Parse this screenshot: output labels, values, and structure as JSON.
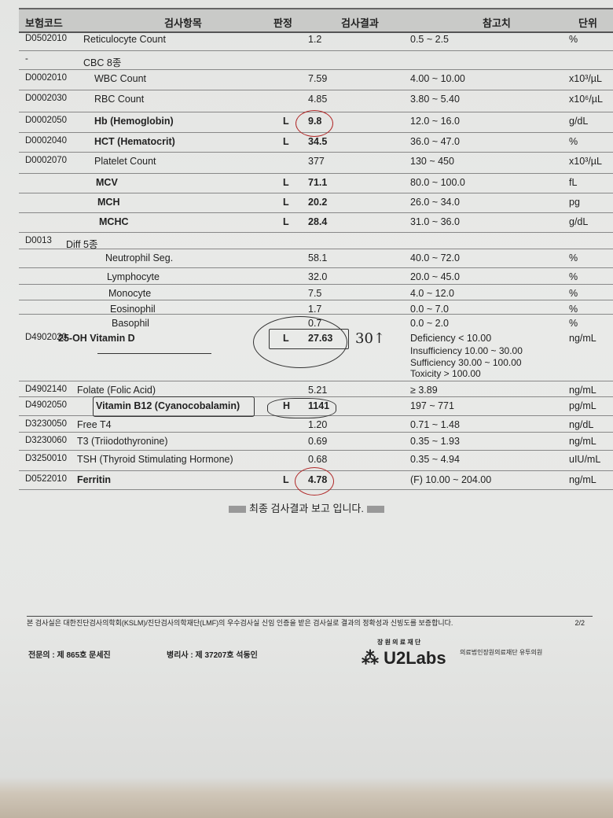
{
  "header": {
    "code": "보험코드",
    "item": "검사항목",
    "flag": "판정",
    "result": "검사결과",
    "reference": "참고치",
    "unit": "단위"
  },
  "rows": [
    {
      "code": "D0502010",
      "name": "Reticulocyte Count",
      "flag": "",
      "result": "1.2",
      "ref": "0.5 ~ 2.5",
      "unit": "%"
    },
    {
      "code": "-",
      "name": "CBC 8종",
      "flag": "",
      "result": "",
      "ref": "",
      "unit": ""
    },
    {
      "code": "D0002010",
      "name": "WBC Count",
      "flag": "",
      "result": "7.59",
      "ref": "4.00 ~ 10.00",
      "unit": "x10³/µL"
    },
    {
      "code": "D0002030",
      "name": "RBC Count",
      "flag": "",
      "result": "4.85",
      "ref": "3.80 ~ 5.40",
      "unit": "x10⁶/µL"
    },
    {
      "code": "D0002050",
      "name": "Hb (Hemoglobin)",
      "flag": "L",
      "result": "9.8",
      "ref": "12.0 ~ 16.0",
      "unit": "g/dL",
      "bold": true
    },
    {
      "code": "D0002040",
      "name": "HCT (Hematocrit)",
      "flag": "L",
      "result": "34.5",
      "ref": "36.0 ~ 47.0",
      "unit": "%",
      "bold": true
    },
    {
      "code": "D0002070",
      "name": "Platelet Count",
      "flag": "",
      "result": "377",
      "ref": "130 ~ 450",
      "unit": "x10³/µL"
    },
    {
      "code": "",
      "name": "MCV",
      "flag": "L",
      "result": "71.1",
      "ref": "80.0 ~ 100.0",
      "unit": "fL",
      "bold": true
    },
    {
      "code": "",
      "name": "MCH",
      "flag": "L",
      "result": "20.2",
      "ref": "26.0 ~ 34.0",
      "unit": "pg",
      "bold": true
    },
    {
      "code": "",
      "name": "MCHC",
      "flag": "L",
      "result": "28.4",
      "ref": "31.0 ~ 36.0",
      "unit": "g/dL",
      "bold": true
    },
    {
      "code": "D0013",
      "name": "Diff 5종",
      "flag": "",
      "result": "",
      "ref": "",
      "unit": ""
    },
    {
      "code": "",
      "name": "Neutrophil Seg.",
      "flag": "",
      "result": "58.1",
      "ref": "40.0 ~ 72.0",
      "unit": "%"
    },
    {
      "code": "",
      "name": "Lymphocyte",
      "flag": "",
      "result": "32.0",
      "ref": "20.0 ~ 45.0",
      "unit": "%"
    },
    {
      "code": "",
      "name": "Monocyte",
      "flag": "",
      "result": "7.5",
      "ref": "4.0 ~ 12.0",
      "unit": "%"
    },
    {
      "code": "",
      "name": "Eosinophil",
      "flag": "",
      "result": "1.7",
      "ref": "0.0 ~ 7.0",
      "unit": "%"
    },
    {
      "code": "",
      "name": "Basophil",
      "flag": "",
      "result": "0.7",
      "ref": "0.0 ~ 2.0",
      "unit": "%"
    },
    {
      "code": "D4902020",
      "name": "25-OH Vitamin D",
      "flag": "L",
      "result": "27.63",
      "ref": "Deficiency < 10.00",
      "unit": "ng/mL",
      "bold": true
    },
    {
      "code": "D4902140",
      "name": "Folate (Folic Acid)",
      "flag": "",
      "result": "5.21",
      "ref": "≥ 3.89",
      "unit": "ng/mL"
    },
    {
      "code": "D4902050",
      "name": "Vitamin B12 (Cyanocobalamin)",
      "flag": "H",
      "result": "1141",
      "ref": "197 ~ 771",
      "unit": "pg/mL",
      "bold": true
    },
    {
      "code": "D3230050",
      "name": "Free T4",
      "flag": "",
      "result": "1.20",
      "ref": "0.71 ~ 1.48",
      "unit": "ng/dL"
    },
    {
      "code": "D3230060",
      "name": "T3 (Triiodothyronine)",
      "flag": "",
      "result": "0.69",
      "ref": "0.35 ~ 1.93",
      "unit": "ng/mL"
    },
    {
      "code": "D3250010",
      "name": "TSH (Thyroid Stimulating Hormone)",
      "flag": "",
      "result": "0.68",
      "ref": "0.35 ~ 4.94",
      "unit": "uIU/mL"
    },
    {
      "code": "D0522010",
      "name": "Ferritin",
      "flag": "L",
      "result": "4.78",
      "ref": "(F) 10.00 ~ 204.00",
      "unit": "ng/mL",
      "bold": true
    }
  ],
  "vitd_ref_extra": [
    "Insufficiency 10.00 ~ 30.00",
    "Sufficiency 30.00 ~ 100.00",
    "Toxicity > 100.00"
  ],
  "handwritten_note": "30↑",
  "final_message": "최종 검사결과 보고 입니다.",
  "footer": {
    "certification": "본 검사실은 대한진단검사의학회(KSLM)/진단검사의학재단(LMF)의 우수검사실 신임 인증을 받은 검사실로 결과의 정확성과 신빙도를 보증합니다.",
    "page": "2/2",
    "specialist": "전문의 : 제 865호  문세진",
    "pathologist": "병리사 : 제 37207호 석동인",
    "foundation": "장 원 의 료 재 단",
    "logo": "U2Labs",
    "institution": "의료법인장원의료재단 유투의원"
  },
  "colors": {
    "pen_red": "#b02828",
    "paper": "#e6e7e5"
  }
}
